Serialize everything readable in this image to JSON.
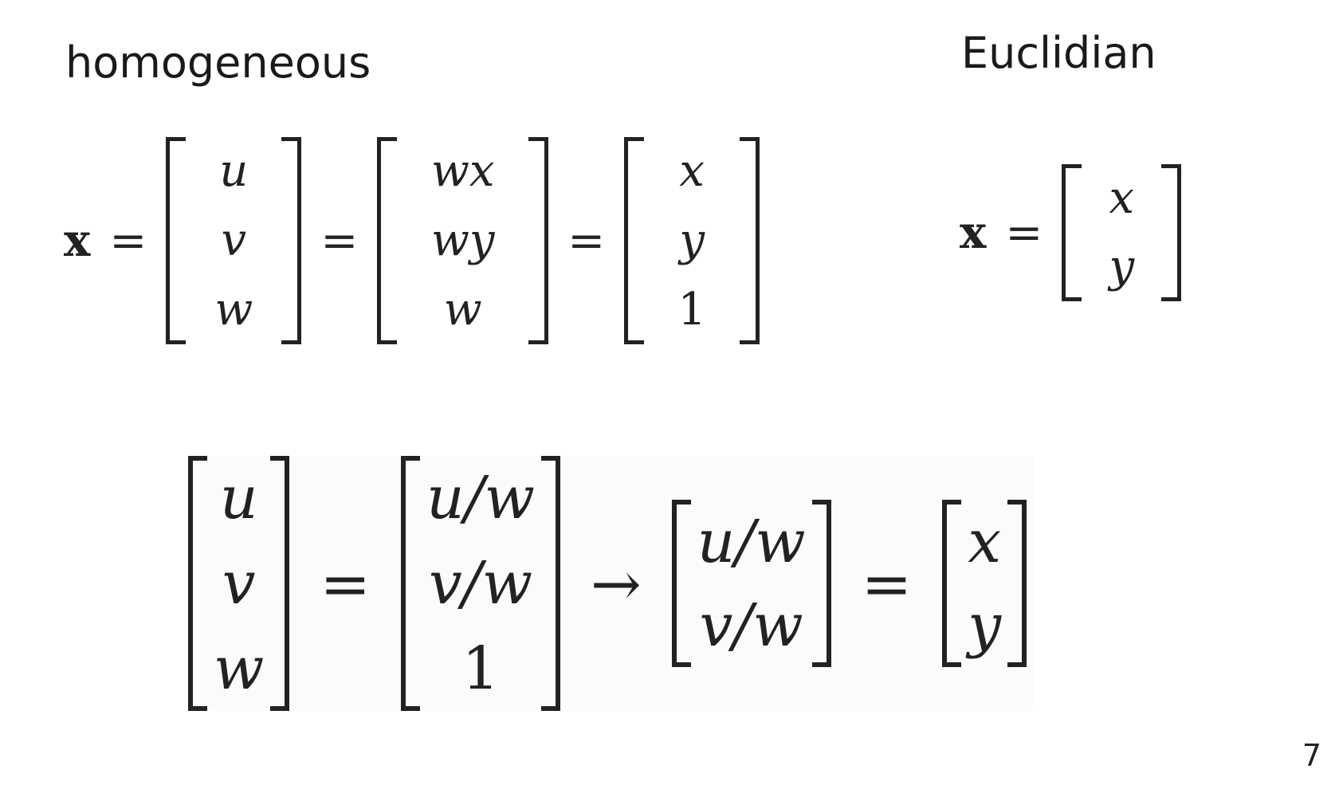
{
  "titles": {
    "homogeneous": "homogeneous",
    "euclidian": "Euclidian"
  },
  "page_number": "7",
  "top_equation": {
    "lhs": "x",
    "equals": "=",
    "vectors": [
      [
        "u",
        "v",
        "w"
      ],
      [
        "wx",
        "wy",
        "w"
      ],
      [
        "x",
        "y",
        "1"
      ]
    ]
  },
  "euclidian_equation": {
    "lhs": "x",
    "equals": "=",
    "vector": [
      "x",
      "y"
    ]
  },
  "bottom_equation": {
    "equals": "=",
    "arrow": "→",
    "vectors": [
      [
        "u",
        "v",
        "w"
      ],
      [
        "u/w",
        "v/w",
        "1"
      ],
      [
        "u/w",
        "v/w"
      ],
      [
        "x",
        "y"
      ]
    ]
  }
}
